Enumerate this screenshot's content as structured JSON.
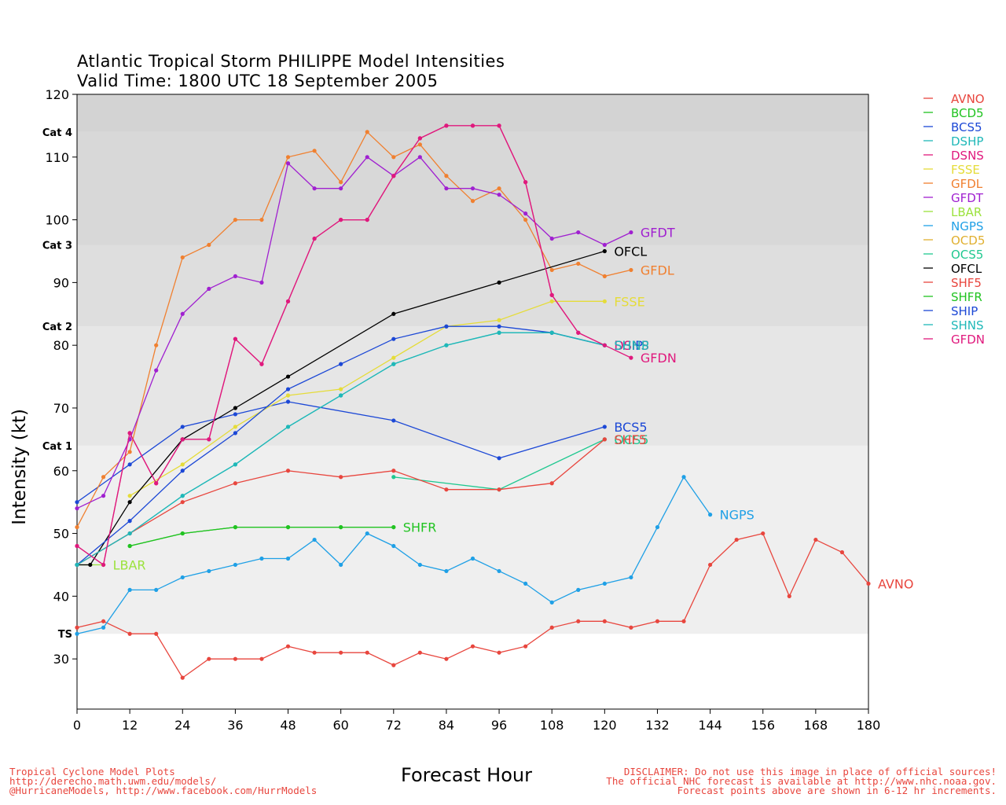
{
  "chart_data": {
    "type": "line",
    "title": "Atlantic Tropical Storm PHILIPPE Model Intensities",
    "subtitle": "Valid Time: 1800 UTC 18 September 2005",
    "xlabel": "Forecast Hour",
    "ylabel": "Intensity (kt)",
    "xlim": [
      0,
      180
    ],
    "ylim": [
      22,
      120
    ],
    "xticks": [
      0,
      12,
      24,
      36,
      48,
      60,
      72,
      84,
      96,
      108,
      120,
      132,
      144,
      156,
      168,
      180
    ],
    "yticks": [
      30,
      40,
      50,
      60,
      70,
      80,
      90,
      100,
      110,
      120
    ],
    "categories": [
      {
        "label": "TS",
        "value": 34
      },
      {
        "label": "Cat 1",
        "value": 64
      },
      {
        "label": "Cat 2",
        "value": 83
      },
      {
        "label": "Cat 3",
        "value": 96
      },
      {
        "label": "Cat 4",
        "value": 114
      }
    ],
    "legend_position": "right",
    "series": [
      {
        "name": "AVNO",
        "color": "#e8463e",
        "end_label": "AVNO",
        "points": [
          [
            0,
            35
          ],
          [
            6,
            36
          ],
          [
            12,
            34
          ],
          [
            18,
            34
          ],
          [
            24,
            27
          ],
          [
            30,
            30
          ],
          [
            36,
            30
          ],
          [
            42,
            30
          ],
          [
            48,
            32
          ],
          [
            54,
            31
          ],
          [
            60,
            31
          ],
          [
            66,
            31
          ],
          [
            72,
            29
          ],
          [
            78,
            31
          ],
          [
            84,
            30
          ],
          [
            90,
            32
          ],
          [
            96,
            31
          ],
          [
            102,
            32
          ],
          [
            108,
            35
          ],
          [
            114,
            36
          ],
          [
            120,
            36
          ],
          [
            126,
            35
          ],
          [
            132,
            36
          ],
          [
            138,
            36
          ],
          [
            144,
            45
          ],
          [
            150,
            49
          ],
          [
            156,
            50
          ],
          [
            162,
            40
          ],
          [
            168,
            49
          ],
          [
            174,
            47
          ],
          [
            180,
            42
          ]
        ]
      },
      {
        "name": "BCD5",
        "color": "#21c321",
        "end_label": "",
        "points": [
          [
            12,
            48
          ],
          [
            24,
            50
          ],
          [
            36,
            51
          ],
          [
            48,
            51
          ],
          [
            60,
            51
          ],
          [
            72,
            51
          ]
        ]
      },
      {
        "name": "BCS5",
        "color": "#1c48d6",
        "end_label": "BCS5",
        "points": [
          [
            0,
            55
          ],
          [
            12,
            61
          ],
          [
            24,
            67
          ],
          [
            36,
            69
          ],
          [
            48,
            71
          ],
          [
            72,
            68
          ],
          [
            96,
            62
          ],
          [
            120,
            67
          ]
        ]
      },
      {
        "name": "DSHP",
        "color": "#1fb8b8",
        "end_label": "DSHP",
        "points": [
          [
            0,
            45
          ],
          [
            12,
            50
          ],
          [
            24,
            56
          ],
          [
            36,
            61
          ],
          [
            48,
            67
          ],
          [
            60,
            72
          ],
          [
            72,
            77
          ],
          [
            84,
            80
          ],
          [
            96,
            82
          ],
          [
            108,
            82
          ],
          [
            120,
            80
          ]
        ]
      },
      {
        "name": "DSNS",
        "color": "#e0197d",
        "end_label": "DSNS",
        "points": [
          [
            0,
            48
          ],
          [
            6,
            45
          ],
          [
            12,
            66
          ],
          [
            18,
            58
          ],
          [
            24,
            65
          ],
          [
            30,
            65
          ],
          [
            36,
            81
          ],
          [
            42,
            77
          ],
          [
            48,
            87
          ],
          [
            54,
            97
          ],
          [
            60,
            100
          ],
          [
            66,
            100
          ],
          [
            72,
            107
          ],
          [
            78,
            113
          ],
          [
            84,
            115
          ],
          [
            90,
            115
          ],
          [
            96,
            115
          ],
          [
            102,
            106
          ],
          [
            108,
            88
          ],
          [
            114,
            82
          ],
          [
            120,
            80
          ]
        ]
      },
      {
        "name": "FSSE",
        "color": "#e5dc39",
        "end_label": "FSSE",
        "points": [
          [
            12,
            56
          ],
          [
            24,
            61
          ],
          [
            36,
            67
          ],
          [
            48,
            72
          ],
          [
            60,
            73
          ],
          [
            72,
            78
          ],
          [
            84,
            83
          ],
          [
            96,
            84
          ],
          [
            108,
            87
          ],
          [
            120,
            87
          ]
        ]
      },
      {
        "name": "GFDL",
        "color": "#f08030",
        "end_label": "GFDL",
        "points": [
          [
            0,
            51
          ],
          [
            6,
            59
          ],
          [
            12,
            63
          ],
          [
            18,
            80
          ],
          [
            24,
            94
          ],
          [
            30,
            96
          ],
          [
            36,
            100
          ],
          [
            42,
            100
          ],
          [
            48,
            110
          ],
          [
            54,
            111
          ],
          [
            60,
            106
          ],
          [
            66,
            114
          ],
          [
            72,
            110
          ],
          [
            78,
            112
          ],
          [
            84,
            107
          ],
          [
            90,
            103
          ],
          [
            96,
            105
          ],
          [
            102,
            100
          ],
          [
            108,
            92
          ],
          [
            114,
            93
          ],
          [
            120,
            91
          ],
          [
            126,
            92
          ]
        ]
      },
      {
        "name": "GFDT",
        "color": "#a020d0",
        "end_label": "GFDT",
        "points": [
          [
            0,
            54
          ],
          [
            6,
            56
          ],
          [
            12,
            65
          ],
          [
            18,
            76
          ],
          [
            24,
            85
          ],
          [
            30,
            89
          ],
          [
            36,
            91
          ],
          [
            42,
            90
          ],
          [
            48,
            109
          ],
          [
            54,
            105
          ],
          [
            60,
            105
          ],
          [
            66,
            110
          ],
          [
            72,
            107
          ],
          [
            78,
            110
          ],
          [
            84,
            105
          ],
          [
            90,
            105
          ],
          [
            96,
            104
          ],
          [
            102,
            101
          ],
          [
            108,
            97
          ],
          [
            114,
            98
          ],
          [
            120,
            96
          ],
          [
            126,
            98
          ]
        ]
      },
      {
        "name": "LBAR",
        "color": "#9be23c",
        "end_label": "LBAR",
        "points": [
          [
            0,
            45
          ],
          [
            6,
            45
          ]
        ]
      },
      {
        "name": "NGPS",
        "color": "#1fa0e6",
        "end_label": "NGPS",
        "points": [
          [
            0,
            34
          ],
          [
            6,
            35
          ],
          [
            12,
            41
          ],
          [
            18,
            41
          ],
          [
            24,
            43
          ],
          [
            30,
            44
          ],
          [
            36,
            45
          ],
          [
            42,
            46
          ],
          [
            48,
            46
          ],
          [
            54,
            49
          ],
          [
            60,
            45
          ],
          [
            66,
            50
          ],
          [
            72,
            48
          ],
          [
            78,
            45
          ],
          [
            84,
            44
          ],
          [
            90,
            46
          ],
          [
            96,
            44
          ],
          [
            102,
            42
          ],
          [
            108,
            39
          ],
          [
            114,
            41
          ],
          [
            120,
            42
          ],
          [
            126,
            43
          ],
          [
            132,
            51
          ],
          [
            138,
            59
          ],
          [
            144,
            53
          ]
        ]
      },
      {
        "name": "OCD5",
        "color": "#e0b030",
        "end_label": "",
        "points": []
      },
      {
        "name": "OCS5",
        "color": "#20c890",
        "end_label": "OCS5",
        "points": [
          [
            72,
            59
          ],
          [
            96,
            57
          ],
          [
            120,
            65
          ]
        ]
      },
      {
        "name": "OFCL",
        "color": "#000000",
        "end_label": "OFCL",
        "points": [
          [
            0,
            45
          ],
          [
            3,
            45
          ],
          [
            12,
            55
          ],
          [
            24,
            65
          ],
          [
            36,
            70
          ],
          [
            48,
            75
          ],
          [
            72,
            85
          ],
          [
            96,
            90
          ],
          [
            120,
            95
          ]
        ]
      },
      {
        "name": "SHF5",
        "color": "#e8463e",
        "end_label": "SHF5",
        "points": [
          [
            0,
            45
          ],
          [
            12,
            50
          ],
          [
            24,
            55
          ],
          [
            36,
            58
          ],
          [
            48,
            60
          ],
          [
            60,
            59
          ],
          [
            72,
            60
          ],
          [
            84,
            57
          ],
          [
            96,
            57
          ],
          [
            108,
            58
          ],
          [
            120,
            65
          ]
        ]
      },
      {
        "name": "SHFR",
        "color": "#21c321",
        "end_label": "SHFR",
        "points": [
          [
            12,
            48
          ],
          [
            24,
            50
          ],
          [
            36,
            51
          ],
          [
            48,
            51
          ],
          [
            60,
            51
          ],
          [
            72,
            51
          ]
        ]
      },
      {
        "name": "SHIP",
        "color": "#1c48d6",
        "end_label": "SHIP",
        "points": [
          [
            0,
            45
          ],
          [
            12,
            52
          ],
          [
            24,
            60
          ],
          [
            36,
            66
          ],
          [
            48,
            73
          ],
          [
            60,
            77
          ],
          [
            72,
            81
          ],
          [
            84,
            83
          ],
          [
            96,
            83
          ],
          [
            108,
            82
          ],
          [
            120,
            80
          ]
        ]
      },
      {
        "name": "SHNS",
        "color": "#1fb8b8",
        "end_label": "SHNS",
        "points": [
          [
            0,
            45
          ],
          [
            12,
            50
          ],
          [
            24,
            56
          ],
          [
            36,
            61
          ],
          [
            48,
            67
          ],
          [
            60,
            72
          ],
          [
            72,
            77
          ],
          [
            84,
            80
          ],
          [
            96,
            82
          ],
          [
            108,
            82
          ],
          [
            120,
            80
          ]
        ]
      },
      {
        "name": "GFDN",
        "color": "#e0197d",
        "end_label": "GFDN",
        "points": [
          [
            0,
            48
          ],
          [
            6,
            45
          ],
          [
            12,
            66
          ],
          [
            18,
            58
          ],
          [
            24,
            65
          ],
          [
            30,
            65
          ],
          [
            36,
            81
          ],
          [
            42,
            77
          ],
          [
            48,
            87
          ],
          [
            54,
            97
          ],
          [
            60,
            100
          ],
          [
            66,
            100
          ],
          [
            72,
            107
          ],
          [
            78,
            113
          ],
          [
            84,
            115
          ],
          [
            90,
            115
          ],
          [
            96,
            115
          ],
          [
            102,
            106
          ],
          [
            108,
            88
          ],
          [
            114,
            82
          ],
          [
            120,
            80
          ],
          [
            126,
            78
          ]
        ]
      }
    ]
  },
  "footer": {
    "left": [
      "Tropical Cyclone Model Plots",
      "http://derecho.math.uwm.edu/models/",
      "@HurricaneModels, http://www.facebook.com/HurrModels"
    ],
    "right": [
      "DISCLAIMER: Do not use this image in place of official sources!",
      "The official NHC forecast is available at http://www.nhc.noaa.gov.",
      "Forecast points above are shown in 6-12 hr increments."
    ]
  }
}
